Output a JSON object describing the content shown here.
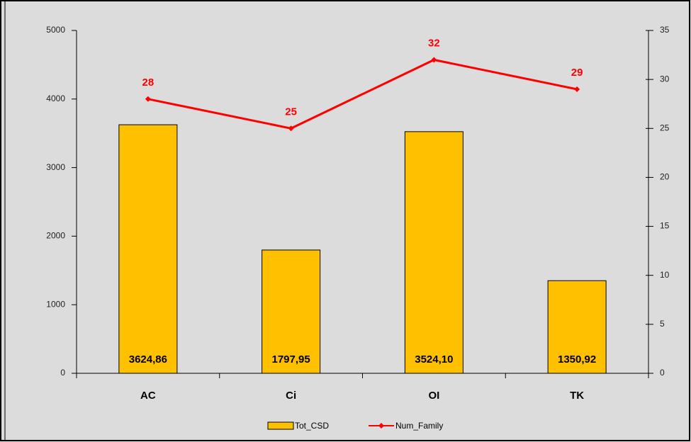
{
  "chart_data": {
    "type": "bar",
    "categories": [
      "AC",
      "Ci",
      "OI",
      "TK"
    ],
    "series": [
      {
        "name": "Tot_CSD",
        "type": "bar",
        "color": "#ffc000",
        "axis": "y",
        "values": [
          3624.86,
          1797.95,
          3524.1,
          1350.92
        ],
        "value_labels": [
          "3624,86",
          "1797,95",
          "3524,10",
          "1350,92"
        ]
      },
      {
        "name": "Num_Family",
        "type": "line",
        "color": "#ff0000",
        "axis": "y2",
        "values": [
          28,
          25,
          32,
          29
        ]
      }
    ],
    "ylim": [
      0,
      5000
    ],
    "yticks": [
      0,
      1000,
      2000,
      3000,
      4000,
      5000
    ],
    "y2lim": [
      0,
      35
    ],
    "y2ticks": [
      0,
      5,
      10,
      15,
      20,
      25,
      30,
      35
    ],
    "grid": false,
    "legend": "bottom"
  }
}
